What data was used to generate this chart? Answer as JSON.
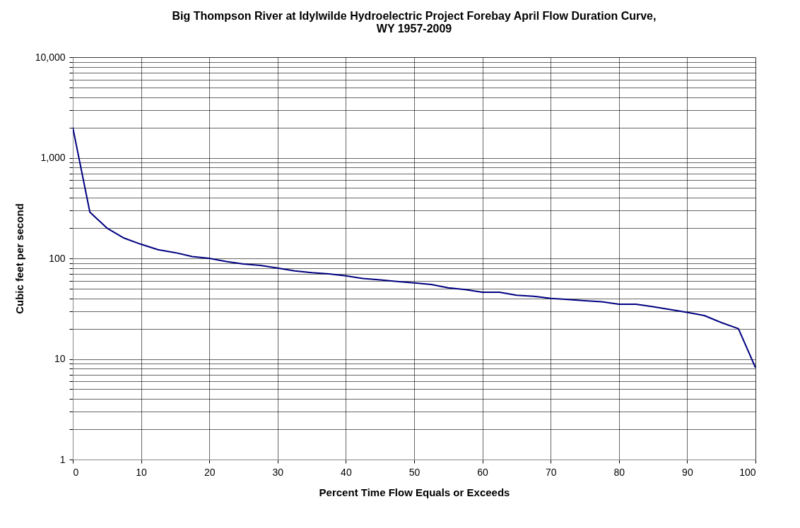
{
  "chart_data": {
    "type": "line",
    "title": "Big Thompson River at Idylwilde Hydroelectric Project Forebay April Flow Duration Curve,\nWY 1957-2009",
    "xlabel": "Percent Time Flow Equals or Exceeds",
    "ylabel": "Cubic feet per second",
    "x": [
      0,
      2.5,
      5,
      7.5,
      10,
      12.5,
      15,
      17.5,
      20,
      22.5,
      25,
      27.5,
      30,
      32.5,
      35,
      37.5,
      40,
      42.5,
      45,
      47.5,
      50,
      52.5,
      55,
      57.5,
      60,
      62.5,
      65,
      67.5,
      70,
      72.5,
      75,
      77.5,
      80,
      82.5,
      85,
      87.5,
      90,
      92.5,
      95,
      97.5,
      100
    ],
    "series": [
      {
        "color": "#000080",
        "values": [
          2000,
          288,
          200,
          159,
          138,
          122,
          114,
          104,
          100,
          93,
          88,
          85,
          80,
          75,
          72,
          70,
          67,
          63,
          61,
          59,
          57,
          55,
          51,
          49,
          46,
          46,
          43,
          42,
          40,
          39,
          38,
          37,
          35,
          35,
          33,
          31,
          29,
          27,
          23,
          20,
          8.2
        ]
      }
    ],
    "log": "y",
    "xlim": [
      0,
      100
    ],
    "xticks": [
      0,
      10,
      20,
      30,
      40,
      50,
      60,
      70,
      80,
      90,
      100
    ],
    "ylim": [
      1,
      10000
    ],
    "yticks": [
      {
        "value": 1,
        "label": "1"
      },
      {
        "value": 2,
        "label": null
      },
      {
        "value": 3,
        "label": null
      },
      {
        "value": 4,
        "label": null
      },
      {
        "value": 5,
        "label": null
      },
      {
        "value": 6,
        "label": null
      },
      {
        "value": 7,
        "label": null
      },
      {
        "value": 8,
        "label": null
      },
      {
        "value": 9,
        "label": null
      },
      {
        "value": 10,
        "label": "10"
      },
      {
        "value": 20,
        "label": null
      },
      {
        "value": 30,
        "label": null
      },
      {
        "value": 40,
        "label": null
      },
      {
        "value": 50,
        "label": null
      },
      {
        "value": 60,
        "label": null
      },
      {
        "value": 70,
        "label": null
      },
      {
        "value": 80,
        "label": null
      },
      {
        "value": 90,
        "label": null
      },
      {
        "value": 100,
        "label": "100"
      },
      {
        "value": 200,
        "label": null
      },
      {
        "value": 300,
        "label": null
      },
      {
        "value": 400,
        "label": null
      },
      {
        "value": 500,
        "label": null
      },
      {
        "value": 600,
        "label": null
      },
      {
        "value": 700,
        "label": null
      },
      {
        "value": 800,
        "label": null
      },
      {
        "value": 900,
        "label": null
      },
      {
        "value": 1000,
        "label": "1,000"
      },
      {
        "value": 2000,
        "label": null
      },
      {
        "value": 3000,
        "label": null
      },
      {
        "value": 4000,
        "label": null
      },
      {
        "value": 5000,
        "label": null
      },
      {
        "value": 6000,
        "label": null
      },
      {
        "value": 7000,
        "label": null
      },
      {
        "value": 8000,
        "label": null
      },
      {
        "value": 9000,
        "label": null
      },
      {
        "value": 10000,
        "label": "10,000"
      }
    ],
    "grid": true,
    "marker": "none",
    "line_style": "solid",
    "legend": false
  }
}
